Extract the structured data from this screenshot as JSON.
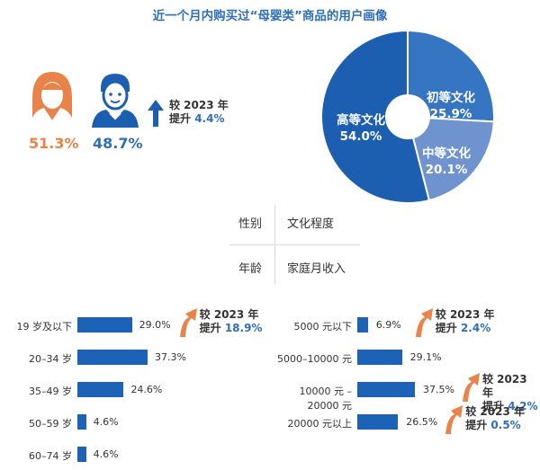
{
  "title": "近一个月内购买过“母婴类”商品的用户画像",
  "colors": {
    "accent": "#2e6fb8",
    "female": "#e8834a",
    "bar": "#1c63b7",
    "arrow": "#e8834a"
  },
  "gender": {
    "female_pct": "51.3%",
    "male_pct": "48.7%",
    "change_line1": "较 2023 年",
    "change_prefix": "提升 ",
    "change_value": "4.4%",
    "female_icon": "female-user-icon",
    "male_icon": "male-user-icon",
    "arrow_icon": "arrow-up-icon"
  },
  "quadrant": {
    "top_left": "性别",
    "top_right": "文化程度",
    "bottom_left": "年龄",
    "bottom_right": "家庭月收入"
  },
  "chart_data": [
    {
      "type": "pie",
      "title": "文化程度",
      "slices": [
        {
          "label": "高等文化",
          "value": 54.0,
          "text": "54.0%",
          "color": "#1c5fb0"
        },
        {
          "label": "初等文化",
          "value": 25.9,
          "text": "25.9%",
          "color": "#3575c2"
        },
        {
          "label": "中等文化",
          "value": 20.1,
          "text": "20.1%",
          "color": "#6f93cf"
        }
      ]
    },
    {
      "type": "bar",
      "orientation": "horizontal",
      "title": "年龄",
      "categories": [
        "19 岁及以下",
        "20–34 岁",
        "35–49 岁",
        "50–59 岁",
        "60–74 岁"
      ],
      "values": [
        29.0,
        37.3,
        24.6,
        4.6,
        4.6
      ],
      "value_labels": [
        "29.0%",
        "37.3%",
        "24.6%",
        "4.6%",
        "4.6%"
      ],
      "annotations": [
        {
          "category": "19 岁及以下",
          "line1": "较 2023 年",
          "prefix": "提升 ",
          "value": "18.9%"
        }
      ]
    },
    {
      "type": "bar",
      "orientation": "horizontal",
      "title": "家庭月收入",
      "categories": [
        "5000 元以下",
        "5000–10000 元",
        "10000 元 –20000 元",
        "20000 元以上"
      ],
      "values": [
        6.9,
        29.1,
        37.5,
        26.5
      ],
      "value_labels": [
        "6.9%",
        "29.1%",
        "37.5%",
        "26.5%"
      ],
      "annotations": [
        {
          "category": "5000 元以下",
          "line1": "较 2023 年",
          "prefix": "提升 ",
          "value": "2.4%"
        },
        {
          "category": "10000 元 –20000 元",
          "line1": "较 2023 年",
          "prefix": "提升 ",
          "value": "4.2%"
        },
        {
          "category": "20000 元以上",
          "line1": "较 2023 年",
          "prefix": "提升 ",
          "value": "0.5%"
        }
      ]
    }
  ]
}
